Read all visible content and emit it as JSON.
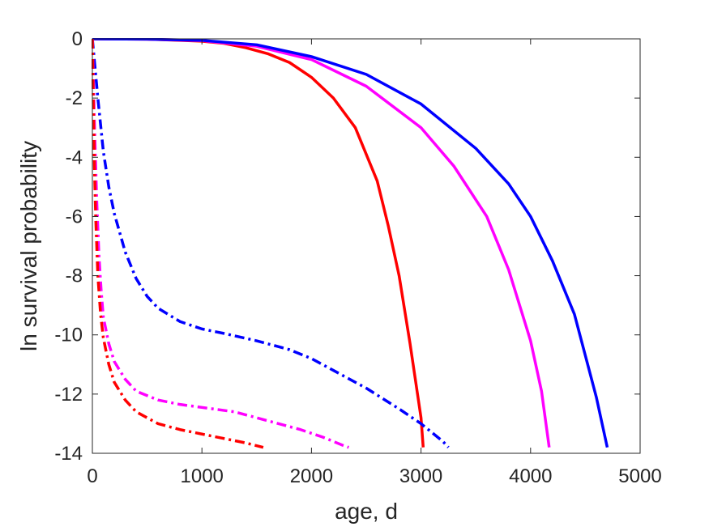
{
  "chart_data": {
    "type": "line",
    "title": "",
    "xlabel": "age, d",
    "ylabel": "ln survival probability",
    "xlim": [
      0,
      5000
    ],
    "ylim": [
      -14,
      0
    ],
    "xticks": [
      "0",
      "1000",
      "2000",
      "3000",
      "4000",
      "5000"
    ],
    "yticks": [
      "0",
      "-2",
      "-4",
      "-6",
      "-8",
      "-10",
      "-12",
      "-14"
    ],
    "grid": false,
    "legend": "none",
    "series": [
      {
        "color": "#ff0000",
        "style": "solid",
        "x": [
          0,
          500,
          1000,
          1200,
          1400,
          1600,
          1800,
          2000,
          2200,
          2400,
          2600,
          2700,
          2800,
          2900,
          3000,
          3020
        ],
        "y": [
          0,
          -0.01,
          -0.08,
          -0.15,
          -0.3,
          -0.5,
          -0.8,
          -1.3,
          -2.0,
          -3.0,
          -4.8,
          -6.3,
          -8.0,
          -10.3,
          -12.8,
          -13.8
        ]
      },
      {
        "color": "#ff00ff",
        "style": "solid",
        "x": [
          0,
          500,
          1000,
          1500,
          2000,
          2500,
          3000,
          3300,
          3600,
          3800,
          4000,
          4100,
          4170
        ],
        "y": [
          0,
          -0.01,
          -0.06,
          -0.25,
          -0.7,
          -1.6,
          -3.0,
          -4.3,
          -6.0,
          -7.8,
          -10.2,
          -11.9,
          -13.8
        ]
      },
      {
        "color": "#0000ff",
        "style": "solid",
        "x": [
          0,
          500,
          1000,
          1500,
          2000,
          2500,
          3000,
          3500,
          3800,
          4000,
          4200,
          4400,
          4600,
          4700
        ],
        "y": [
          0,
          -0.01,
          -0.05,
          -0.2,
          -0.6,
          -1.2,
          -2.2,
          -3.7,
          -4.9,
          -6.0,
          -7.5,
          -9.3,
          -12.1,
          -13.8
        ]
      },
      {
        "color": "#0000ff",
        "style": "dashdot",
        "x": [
          0,
          50,
          100,
          150,
          200,
          300,
          400,
          500,
          600,
          800,
          1000,
          1200,
          1500,
          1800,
          2000,
          2200,
          2500,
          2800,
          3000,
          3100,
          3200,
          3250
        ],
        "y": [
          0,
          -2.0,
          -3.8,
          -5.0,
          -5.9,
          -7.2,
          -8.1,
          -8.7,
          -9.1,
          -9.55,
          -9.8,
          -9.95,
          -10.2,
          -10.5,
          -10.8,
          -11.2,
          -11.8,
          -12.5,
          -13.0,
          -13.3,
          -13.6,
          -13.8
        ]
      },
      {
        "color": "#ff00ff",
        "style": "dashdot",
        "x": [
          0,
          20,
          40,
          60,
          80,
          100,
          150,
          200,
          300,
          400,
          600,
          800,
          1000,
          1300,
          1600,
          1900,
          2100,
          2300,
          2340
        ],
        "y": [
          0,
          -3.0,
          -5.5,
          -7.3,
          -8.5,
          -9.4,
          -10.3,
          -10.9,
          -11.5,
          -11.9,
          -12.2,
          -12.35,
          -12.45,
          -12.6,
          -12.9,
          -13.2,
          -13.45,
          -13.75,
          -13.8
        ]
      },
      {
        "color": "#ff0000",
        "style": "dashdot",
        "x": [
          0,
          10,
          20,
          30,
          50,
          75,
          100,
          150,
          200,
          300,
          400,
          600,
          800,
          1000,
          1200,
          1400,
          1560
        ],
        "y": [
          0,
          -2.5,
          -4.5,
          -6.0,
          -8.0,
          -9.3,
          -10.1,
          -11.0,
          -11.6,
          -12.2,
          -12.6,
          -13.0,
          -13.2,
          -13.35,
          -13.5,
          -13.65,
          -13.8
        ]
      }
    ]
  }
}
